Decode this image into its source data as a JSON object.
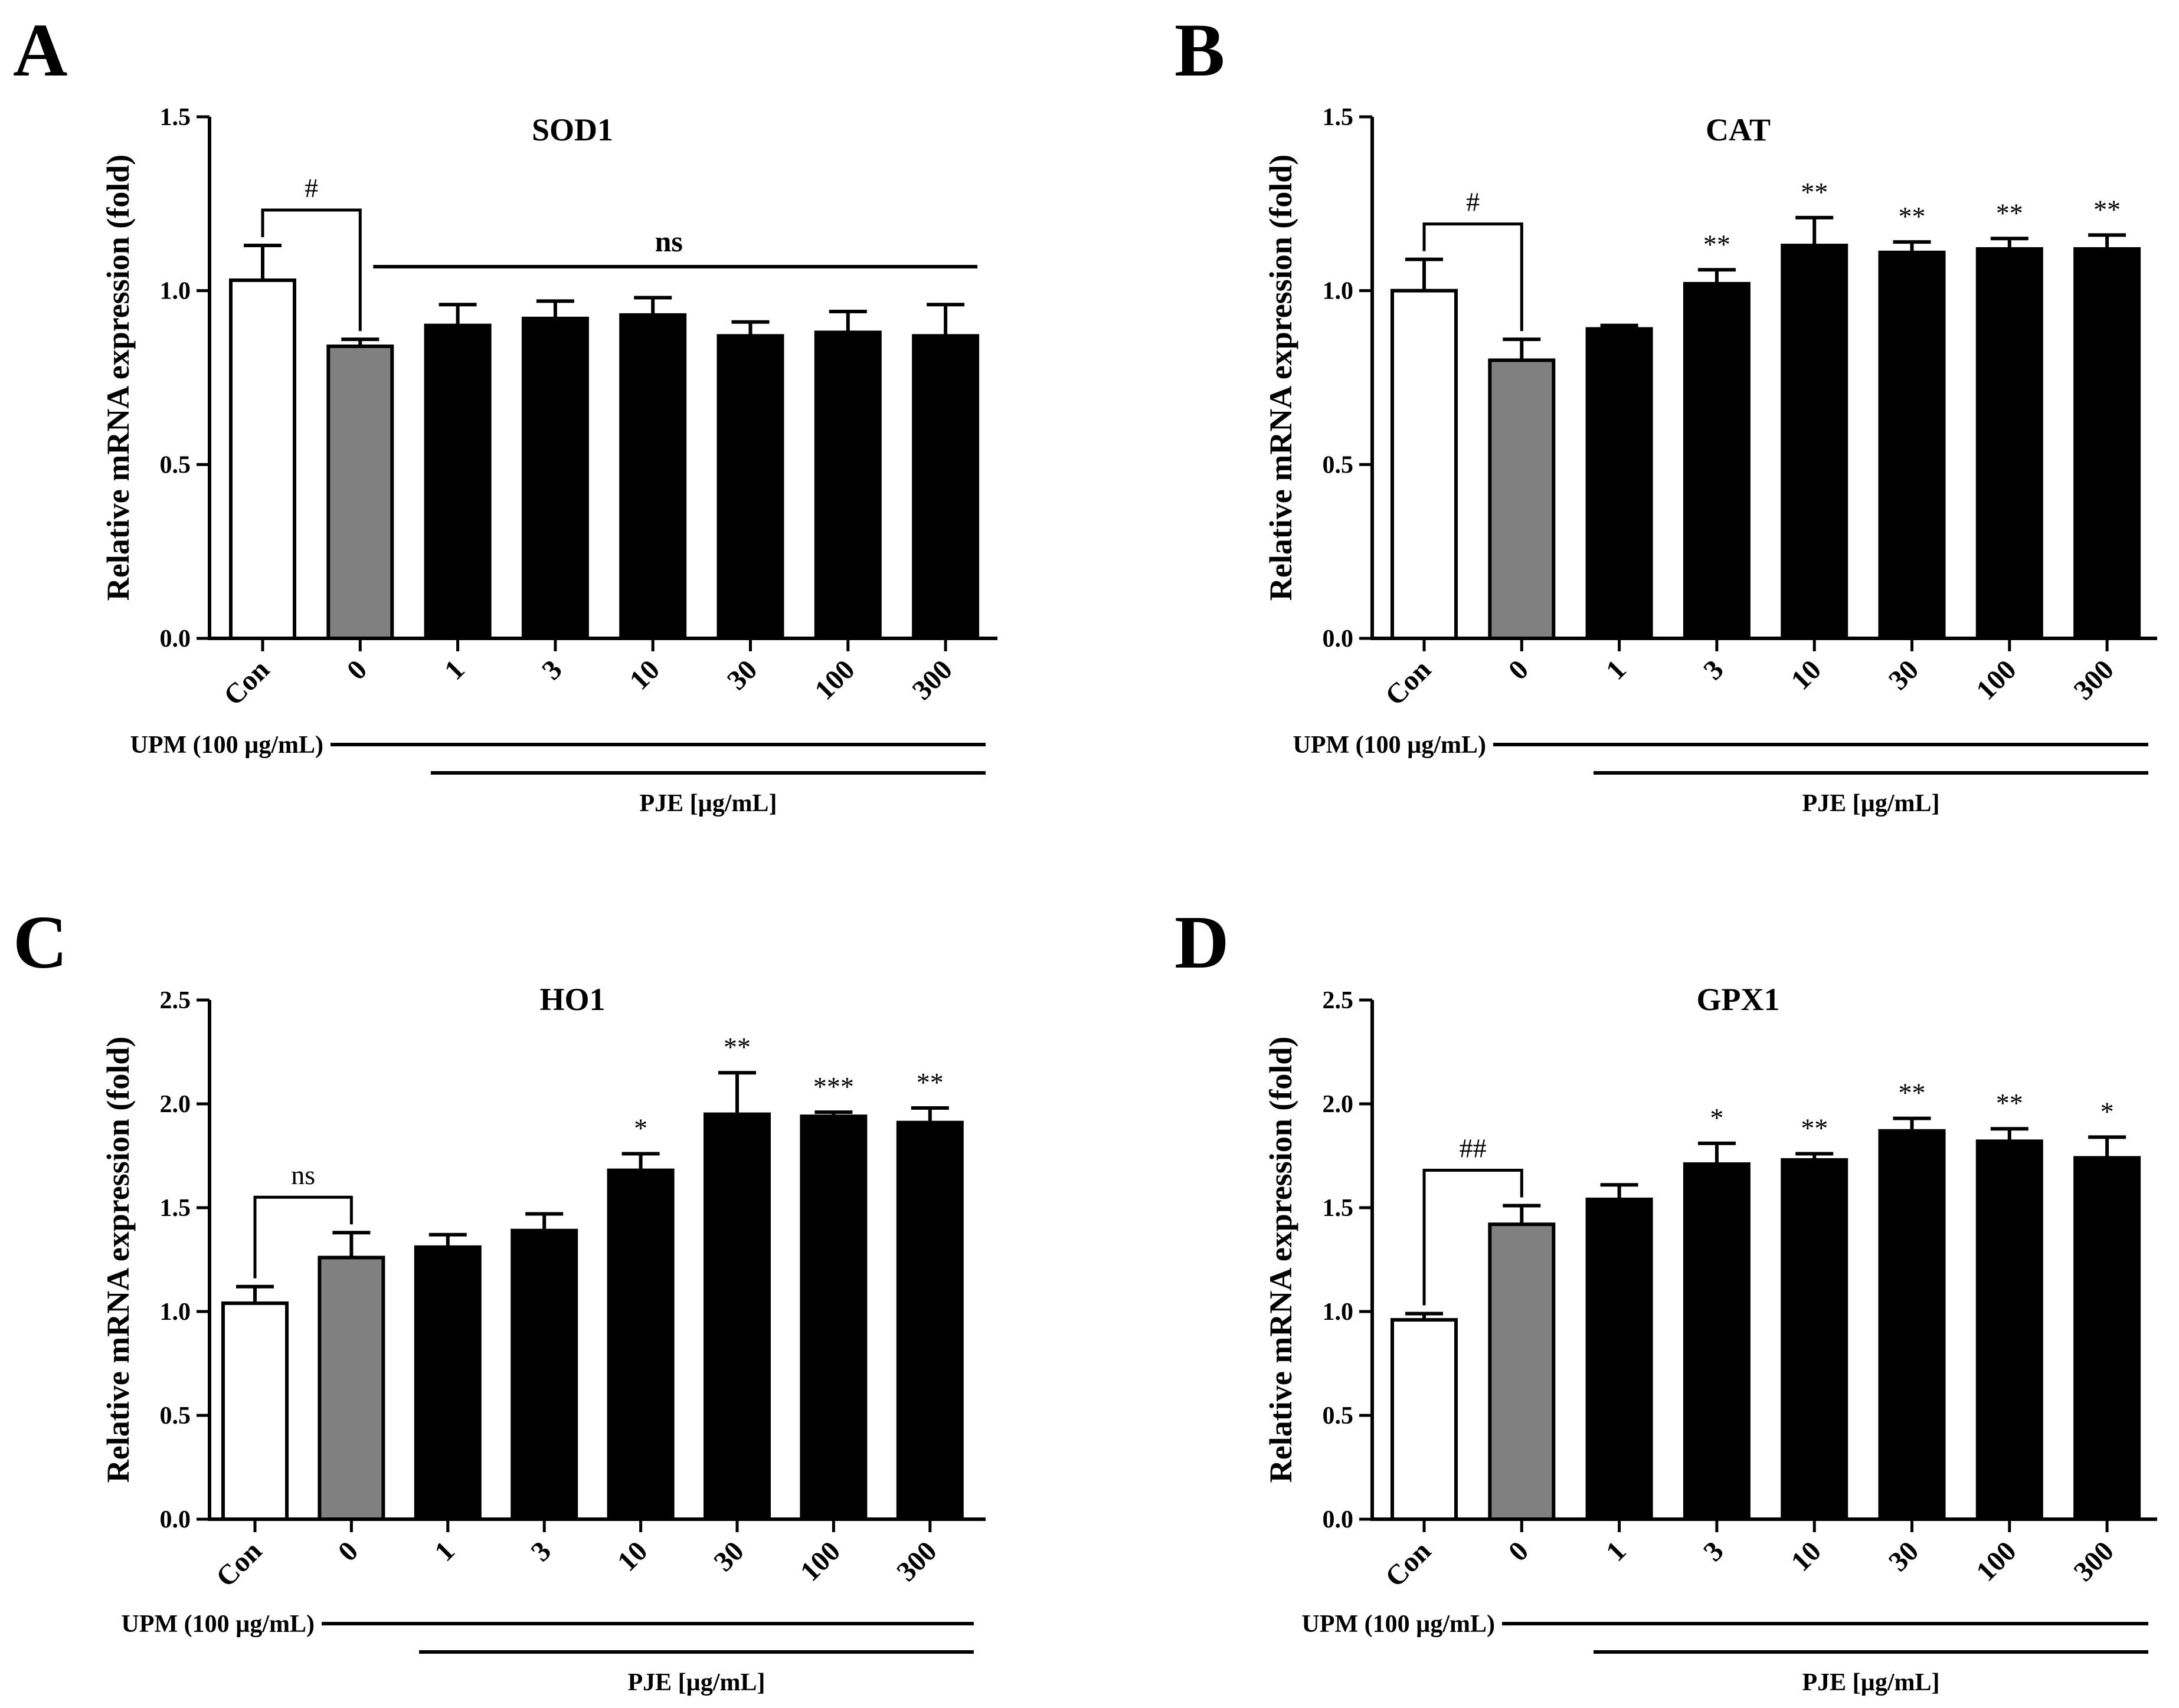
{
  "figure": {
    "x_categories": [
      "Con",
      "0",
      "1",
      "3",
      "10",
      "30",
      "100",
      "300"
    ],
    "bar_fills": [
      "#ffffff",
      "#808080",
      "#000000",
      "#000000",
      "#000000",
      "#000000",
      "#000000",
      "#000000"
    ],
    "upm_label": "UPM (100 µg/mL)",
    "pje_label": "PJE [µg/mL]"
  },
  "chart_data": [
    {
      "type": "bar",
      "panel": "A",
      "title": "SOD1",
      "ylabel": "Relative mRNA expression (fold)",
      "ylim": [
        0,
        1.5
      ],
      "yticks": [
        "0.0",
        "0.5",
        "1.0",
        "1.5"
      ],
      "categories": [
        "Con",
        "0",
        "1",
        "3",
        "10",
        "30",
        "100",
        "300"
      ],
      "values": [
        1.03,
        0.84,
        0.9,
        0.92,
        0.93,
        0.87,
        0.88,
        0.87
      ],
      "errors": [
        0.1,
        0.02,
        0.06,
        0.05,
        0.05,
        0.04,
        0.06,
        0.09
      ],
      "significance": [
        "",
        "",
        "",
        "",
        "",
        "",
        "",
        ""
      ],
      "bracket": {
        "label": "#",
        "from": 0,
        "to": 1
      },
      "ns_line": {
        "label": "ns",
        "from": 1,
        "to": 7
      }
    },
    {
      "type": "bar",
      "panel": "B",
      "title": "CAT",
      "ylabel": "Relative mRNA expression (fold)",
      "ylim": [
        0,
        1.5
      ],
      "yticks": [
        "0.0",
        "0.5",
        "1.0",
        "1.5"
      ],
      "categories": [
        "Con",
        "0",
        "1",
        "3",
        "10",
        "30",
        "100",
        "300"
      ],
      "values": [
        1.0,
        0.8,
        0.89,
        1.02,
        1.13,
        1.11,
        1.12,
        1.12
      ],
      "errors": [
        0.09,
        0.06,
        0.01,
        0.04,
        0.08,
        0.03,
        0.03,
        0.04
      ],
      "significance": [
        "",
        "",
        "",
        "**",
        "**",
        "**",
        "**",
        "**"
      ],
      "bracket": {
        "label": "#",
        "from": 0,
        "to": 1
      }
    },
    {
      "type": "bar",
      "panel": "C",
      "title": "HO1",
      "ylabel": "Relative mRNA expression (fold)",
      "ylim": [
        0,
        2.5
      ],
      "yticks": [
        "0.0",
        "0.5",
        "1.0",
        "1.5",
        "2.0",
        "2.5"
      ],
      "categories": [
        "Con",
        "0",
        "1",
        "3",
        "10",
        "30",
        "100",
        "300"
      ],
      "values": [
        1.04,
        1.26,
        1.31,
        1.39,
        1.68,
        1.95,
        1.94,
        1.91
      ],
      "errors": [
        0.08,
        0.12,
        0.06,
        0.08,
        0.08,
        0.2,
        0.02,
        0.07
      ],
      "significance": [
        "",
        "",
        "",
        "",
        "*",
        "**",
        "***",
        "**"
      ],
      "bracket": {
        "label": "ns",
        "from": 0,
        "to": 1
      }
    },
    {
      "type": "bar",
      "panel": "D",
      "title": "GPX1",
      "ylabel": "Relative mRNA expression (fold)",
      "ylim": [
        0,
        2.5
      ],
      "yticks": [
        "0.0",
        "0.5",
        "1.0",
        "1.5",
        "2.0",
        "2.5"
      ],
      "categories": [
        "Con",
        "0",
        "1",
        "3",
        "10",
        "30",
        "100",
        "300"
      ],
      "values": [
        0.96,
        1.42,
        1.54,
        1.71,
        1.73,
        1.87,
        1.82,
        1.74
      ],
      "errors": [
        0.03,
        0.09,
        0.07,
        0.1,
        0.03,
        0.06,
        0.06,
        0.1
      ],
      "significance": [
        "",
        "",
        "",
        "*",
        "**",
        "**",
        "**",
        "*"
      ],
      "bracket": {
        "label": "##",
        "from": 0,
        "to": 1
      }
    }
  ]
}
